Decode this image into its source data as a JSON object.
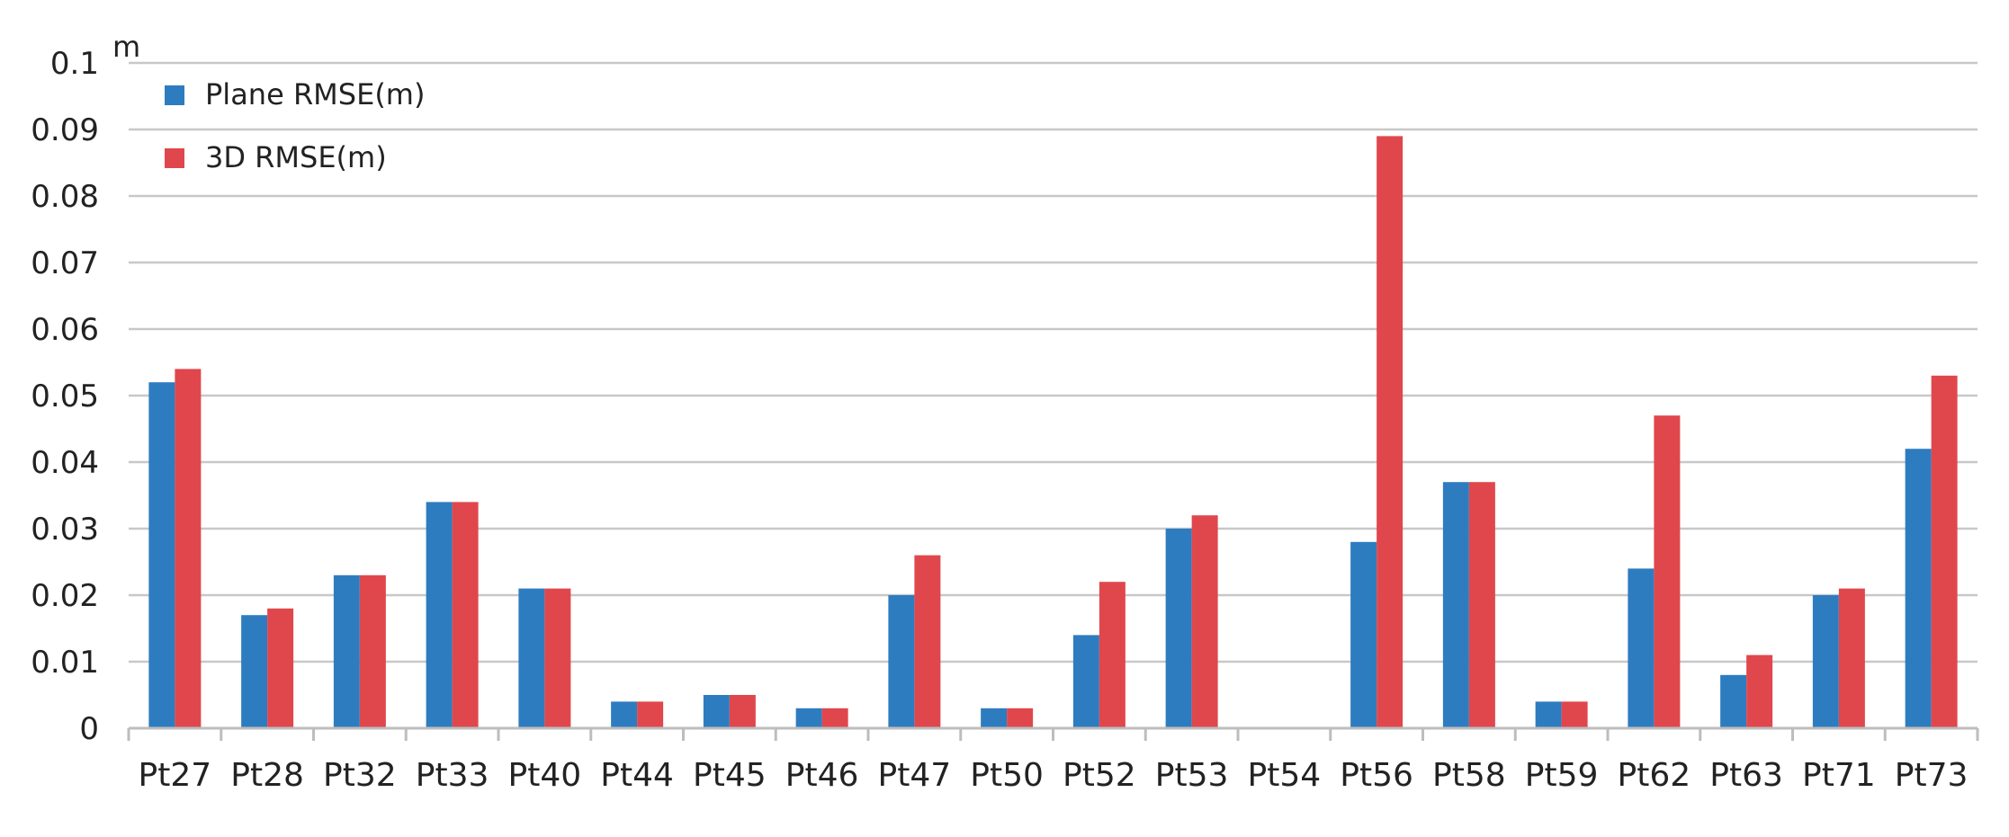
{
  "chart_data": {
    "type": "bar",
    "title": "",
    "xlabel": "",
    "ylabel": "m",
    "ylim": [
      0,
      0.1
    ],
    "yticks": [
      "0",
      "0.01",
      "0.02",
      "0.03",
      "0.04",
      "0.05",
      "0.06",
      "0.07",
      "0.08",
      "0.09",
      "0.1"
    ],
    "grid": true,
    "legend_position": "top-left",
    "categories": [
      "Pt27",
      "Pt28",
      "Pt32",
      "Pt33",
      "Pt40",
      "Pt44",
      "Pt45",
      "Pt46",
      "Pt47",
      "Pt50",
      "Pt52",
      "Pt53",
      "Pt54",
      "Pt56",
      "Pt58",
      "Pt59",
      "Pt62",
      "Pt63",
      "Pt71",
      "Pt73"
    ],
    "series": [
      {
        "name": "Plane RMSE(m)",
        "color": "#2E7CC0",
        "values": [
          0.052,
          0.017,
          0.023,
          0.034,
          0.021,
          0.004,
          0.005,
          0.003,
          0.02,
          0.003,
          0.014,
          0.03,
          0.0,
          0.028,
          0.037,
          0.004,
          0.024,
          0.008,
          0.02,
          0.042
        ]
      },
      {
        "name": "3D RMSE(m)",
        "color": "#E0474C",
        "values": [
          0.054,
          0.018,
          0.023,
          0.034,
          0.021,
          0.004,
          0.005,
          0.003,
          0.026,
          0.003,
          0.022,
          0.032,
          0.0,
          0.089,
          0.037,
          0.004,
          0.047,
          0.011,
          0.021,
          0.053
        ]
      }
    ]
  }
}
